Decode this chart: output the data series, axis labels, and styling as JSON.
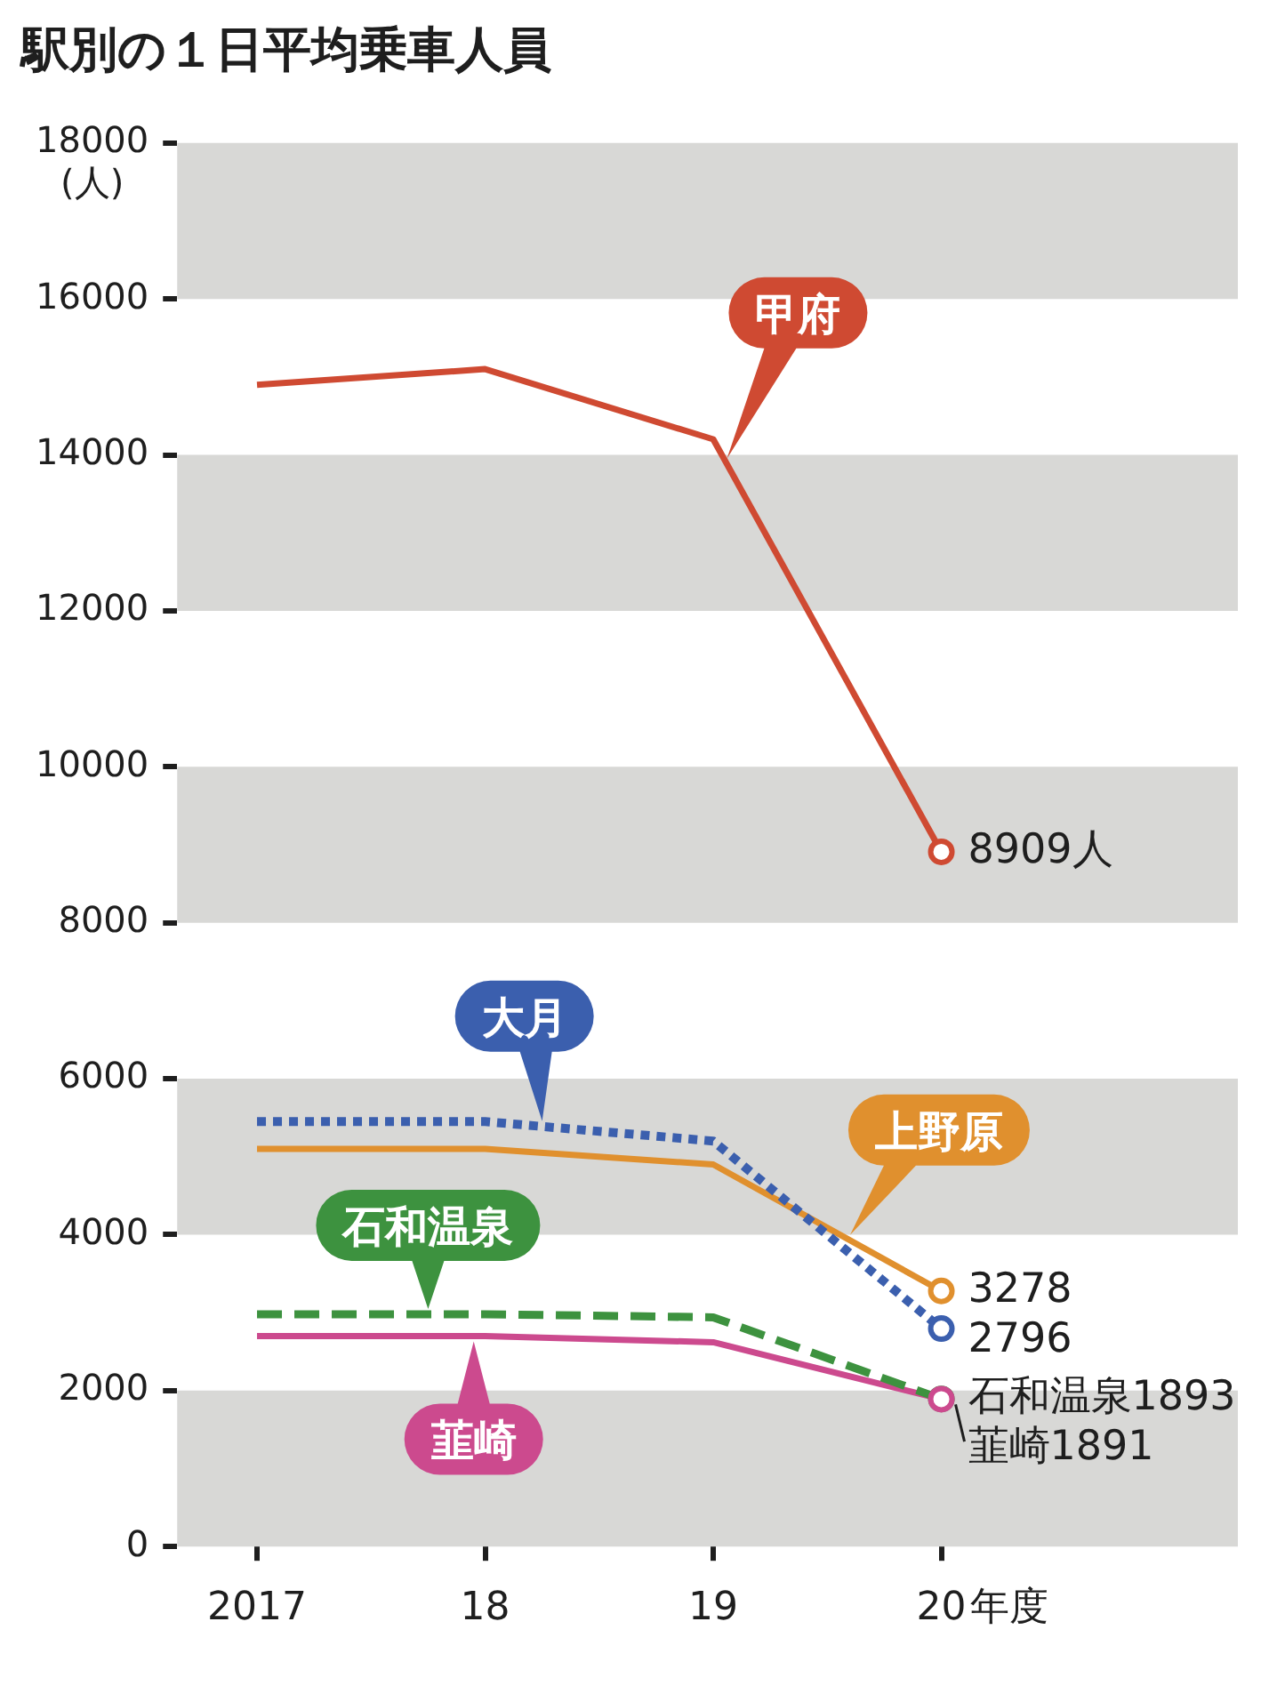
{
  "chart_data": {
    "type": "line",
    "title": "駅別の１日平均乗車人員",
    "ylabel": "(人)",
    "xlabel": "年度",
    "categories": [
      "2017",
      "18",
      "19",
      "20"
    ],
    "series": [
      {
        "name": "甲府",
        "color": "#cf4a32",
        "values": [
          14900,
          15100,
          14200,
          8909
        ],
        "line_style": "solid",
        "value_labels": [
          null,
          null,
          null,
          "8909人"
        ]
      },
      {
        "name": "大月",
        "color": "#3b5fae",
        "values": [
          5450,
          5450,
          5200,
          2796
        ],
        "line_style": "dotted",
        "value_labels": [
          null,
          null,
          null,
          "2796"
        ]
      },
      {
        "name": "上野原",
        "color": "#e0902e",
        "values": [
          5100,
          5100,
          4900,
          3278
        ],
        "line_style": "solid",
        "value_labels": [
          null,
          null,
          null,
          "3278"
        ]
      },
      {
        "name": "石和温泉",
        "color": "#3d923f",
        "values": [
          2980,
          2980,
          2940,
          1893
        ],
        "line_style": "dashed",
        "value_labels": [
          null,
          null,
          null,
          "石和温泉1893"
        ]
      },
      {
        "name": "韮崎",
        "color": "#cc4a8e",
        "values": [
          2700,
          2700,
          2620,
          1891
        ],
        "line_style": "solid",
        "value_labels": [
          null,
          null,
          null,
          "韮崎1891"
        ]
      }
    ],
    "ylim": [
      0,
      18000
    ],
    "yticks": [
      0,
      2000,
      4000,
      6000,
      8000,
      10000,
      12000,
      14000,
      16000,
      18000
    ],
    "bands": [
      {
        "axis": "y",
        "from": 0,
        "to": 2000,
        "color": "#d8d8d6"
      },
      {
        "axis": "y",
        "from": 4000,
        "to": 6000,
        "color": "#d8d8d6"
      },
      {
        "axis": "y",
        "from": 8000,
        "to": 10000,
        "color": "#d8d8d6"
      },
      {
        "axis": "y",
        "from": 12000,
        "to": 14000,
        "color": "#d8d8d6"
      },
      {
        "axis": "y",
        "from": 16000,
        "to": 18000,
        "color": "#d8d8d6"
      }
    ],
    "legend": false
  }
}
